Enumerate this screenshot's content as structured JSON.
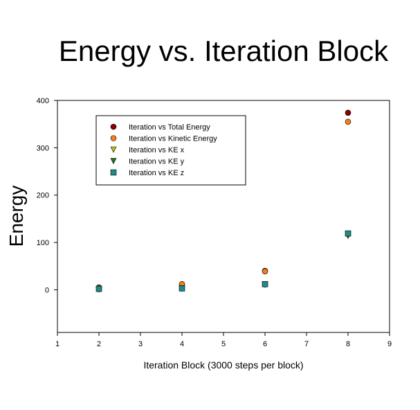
{
  "chart_data": {
    "type": "scatter",
    "title": "Energy vs. Iteration Block",
    "xlabel": "Iteration Block (3000 steps per block)",
    "ylabel": "Energy",
    "xlim": [
      1,
      9
    ],
    "ylim": [
      -90,
      400
    ],
    "xticks": [
      1,
      2,
      3,
      4,
      5,
      6,
      7,
      8,
      9
    ],
    "yticks": [
      0,
      100,
      200,
      300,
      400
    ],
    "grid": false,
    "legend_position": "top-left",
    "series": [
      {
        "name": "Iteration vs Total Energy",
        "marker": "circle",
        "color": "#8b0000",
        "x": [
          2,
          4,
          6,
          8
        ],
        "y": [
          5,
          12,
          40,
          374
        ]
      },
      {
        "name": "Iteration vs Kinetic Energy",
        "marker": "circle",
        "color": "#f07f1e",
        "x": [
          2,
          4,
          6,
          8
        ],
        "y": [
          4,
          12,
          39,
          355
        ]
      },
      {
        "name": "Iteration vs KE x",
        "marker": "triangle-down",
        "color": "#b5c11a",
        "x": [
          2,
          4,
          6,
          8
        ],
        "y": [
          1,
          3,
          11,
          114
        ]
      },
      {
        "name": "Iteration vs KE y",
        "marker": "triangle-down",
        "color": "#1f7a1f",
        "x": [
          2,
          4,
          6,
          8
        ],
        "y": [
          1,
          3,
          11,
          117
        ]
      },
      {
        "name": "Iteration vs KE z",
        "marker": "square",
        "color": "#1e8a8a",
        "x": [
          2,
          4,
          6,
          8
        ],
        "y": [
          2,
          3,
          12,
          119
        ]
      }
    ]
  }
}
